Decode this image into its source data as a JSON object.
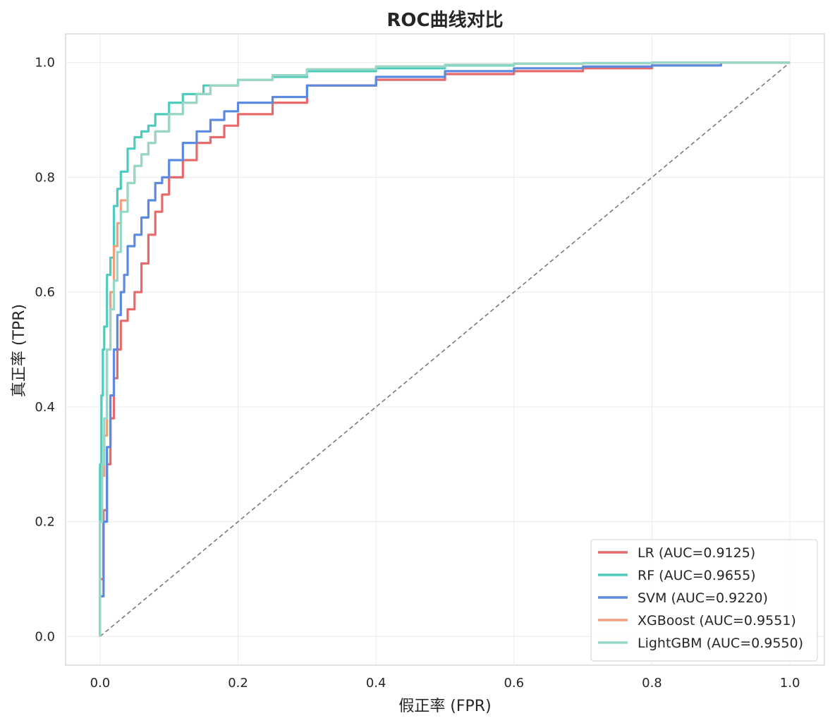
{
  "chart_data": {
    "type": "line",
    "title": "ROC曲线对比",
    "xlabel": "假正率 (FPR)",
    "ylabel": "真正率 (TPR)",
    "xlim": [
      -0.05,
      1.05
    ],
    "ylim": [
      -0.05,
      1.05
    ],
    "xticks": [
      "0.0",
      "0.2",
      "0.4",
      "0.6",
      "0.8",
      "1.0"
    ],
    "yticks": [
      "0.0",
      "0.2",
      "0.4",
      "0.6",
      "0.8",
      "1.0"
    ],
    "grid": true,
    "legend_position": "lower-right",
    "diagonal": {
      "x": [
        0,
        1
      ],
      "y": [
        0,
        1
      ],
      "color": "#7a7a7a",
      "style": "dashed"
    },
    "series": [
      {
        "name": "LR (AUC=0.9125)",
        "color": "#e8696a",
        "x": [
          0,
          0.005,
          0.01,
          0.015,
          0.02,
          0.025,
          0.03,
          0.04,
          0.05,
          0.06,
          0.07,
          0.08,
          0.09,
          0.1,
          0.12,
          0.14,
          0.16,
          0.18,
          0.2,
          0.25,
          0.3,
          0.4,
          0.5,
          0.6,
          0.7,
          0.8,
          0.9,
          1.0
        ],
        "y": [
          0,
          0.1,
          0.22,
          0.3,
          0.38,
          0.45,
          0.5,
          0.55,
          0.57,
          0.6,
          0.65,
          0.7,
          0.74,
          0.77,
          0.8,
          0.83,
          0.86,
          0.87,
          0.89,
          0.91,
          0.93,
          0.96,
          0.97,
          0.98,
          0.985,
          0.99,
          0.995,
          1.0
        ]
      },
      {
        "name": "RF (AUC=0.9655)",
        "color": "#4ecbbc",
        "x": [
          0,
          0.002,
          0.004,
          0.006,
          0.01,
          0.015,
          0.02,
          0.025,
          0.03,
          0.04,
          0.05,
          0.06,
          0.07,
          0.08,
          0.1,
          0.12,
          0.15,
          0.2,
          0.25,
          0.3,
          0.4,
          0.5,
          0.6,
          0.7,
          0.8,
          0.9,
          1.0
        ],
        "y": [
          0,
          0.3,
          0.42,
          0.5,
          0.54,
          0.63,
          0.66,
          0.75,
          0.78,
          0.81,
          0.85,
          0.87,
          0.88,
          0.89,
          0.91,
          0.93,
          0.945,
          0.96,
          0.97,
          0.975,
          0.985,
          0.99,
          0.995,
          0.998,
          0.999,
          1.0,
          1.0
        ]
      },
      {
        "name": "SVM (AUC=0.9220)",
        "color": "#5b8ae0",
        "x": [
          0,
          0.005,
          0.01,
          0.015,
          0.02,
          0.025,
          0.03,
          0.035,
          0.04,
          0.05,
          0.06,
          0.07,
          0.08,
          0.09,
          0.1,
          0.12,
          0.14,
          0.16,
          0.18,
          0.2,
          0.25,
          0.3,
          0.4,
          0.5,
          0.6,
          0.7,
          0.8,
          0.9,
          1.0
        ],
        "y": [
          0,
          0.07,
          0.2,
          0.33,
          0.42,
          0.5,
          0.56,
          0.6,
          0.63,
          0.68,
          0.7,
          0.73,
          0.76,
          0.79,
          0.8,
          0.83,
          0.86,
          0.88,
          0.9,
          0.915,
          0.93,
          0.94,
          0.96,
          0.975,
          0.985,
          0.99,
          0.993,
          0.995,
          1.0
        ]
      },
      {
        "name": "XGBoost (AUC=0.9551)",
        "color": "#f0a07c",
        "x": [
          0,
          0.003,
          0.006,
          0.01,
          0.015,
          0.02,
          0.025,
          0.03,
          0.04,
          0.05,
          0.06,
          0.07,
          0.08,
          0.1,
          0.12,
          0.14,
          0.16,
          0.2,
          0.25,
          0.3,
          0.4,
          0.5,
          0.6,
          0.7,
          0.8,
          0.9,
          1.0
        ],
        "y": [
          0,
          0.2,
          0.28,
          0.35,
          0.5,
          0.6,
          0.68,
          0.72,
          0.76,
          0.79,
          0.82,
          0.84,
          0.86,
          0.88,
          0.91,
          0.93,
          0.945,
          0.96,
          0.97,
          0.978,
          0.988,
          0.993,
          0.996,
          0.998,
          0.999,
          1.0,
          1.0
        ]
      },
      {
        "name": "LightGBM (AUC=0.9550)",
        "color": "#96d8c8",
        "x": [
          0,
          0.003,
          0.006,
          0.01,
          0.015,
          0.02,
          0.025,
          0.03,
          0.04,
          0.05,
          0.06,
          0.07,
          0.08,
          0.1,
          0.12,
          0.14,
          0.16,
          0.2,
          0.25,
          0.3,
          0.4,
          0.5,
          0.6,
          0.7,
          0.8,
          0.9,
          1.0
        ],
        "y": [
          0,
          0.2,
          0.3,
          0.38,
          0.5,
          0.57,
          0.62,
          0.67,
          0.74,
          0.79,
          0.82,
          0.84,
          0.86,
          0.88,
          0.91,
          0.93,
          0.945,
          0.96,
          0.97,
          0.978,
          0.988,
          0.993,
          0.996,
          0.998,
          0.999,
          1.0,
          1.0
        ]
      }
    ]
  }
}
